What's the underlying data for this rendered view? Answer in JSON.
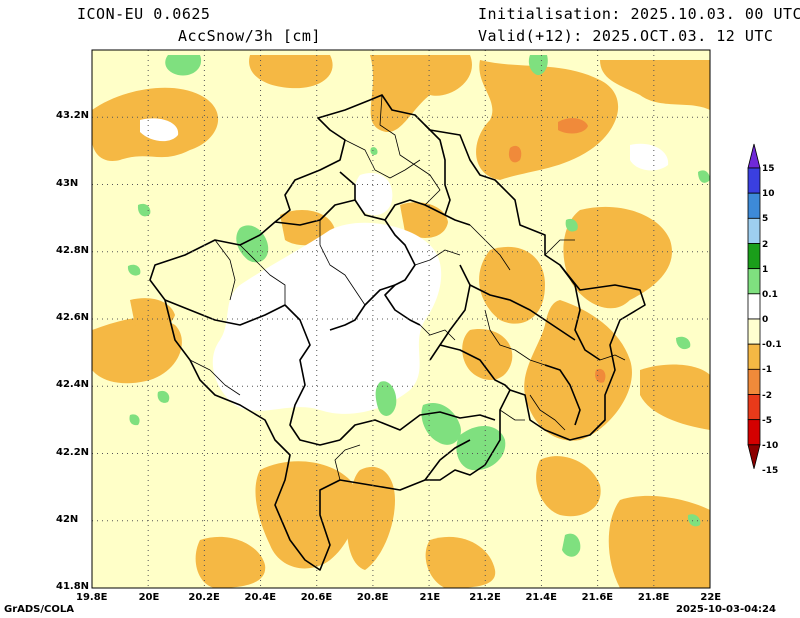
{
  "header": {
    "model": "ICON-EU 0.0625",
    "variable": "AccSnow/3h [cm]",
    "init": "Initialisation: 2025.10.03. 00 UTC",
    "valid": "Valid(+12): 2025.OCT.03. 12 UTC"
  },
  "axes": {
    "x_ticks": [
      "19.8E",
      "20E",
      "20.2E",
      "20.4E",
      "20.6E",
      "20.8E",
      "21E",
      "21.2E",
      "21.4E",
      "21.6E",
      "21.8E",
      "22E"
    ],
    "y_ticks": [
      "43.2N",
      "43N",
      "42.8N",
      "42.6N",
      "42.4N",
      "42.2N",
      "42N",
      "41.8N"
    ],
    "lon_range": [
      19.8,
      22.0
    ],
    "lat_range": [
      41.8,
      43.4
    ]
  },
  "legend": {
    "labels": [
      "15",
      "10",
      "5",
      "2",
      "1",
      "0.1",
      "0",
      "-0.1",
      "-1",
      "-2",
      "-5",
      "-10",
      "-15"
    ],
    "colors": [
      "#6f28d8",
      "#3a3fe0",
      "#3d8ad8",
      "#9ecff0",
      "#1a9e1a",
      "#7fe07f",
      "#ffffff",
      "#ffffd0",
      "#f5b844",
      "#f08a3a",
      "#e83a1a",
      "#d40000",
      "#8c0000"
    ]
  },
  "footer": {
    "left": "GrADS/COLA",
    "right": "2025-10-03-04:24"
  },
  "colors": {
    "dry": "#ffffc8",
    "neg": "#f5b844",
    "neg2": "#f08a3a",
    "pos": "#7fe07f",
    "grid": "#555555"
  }
}
